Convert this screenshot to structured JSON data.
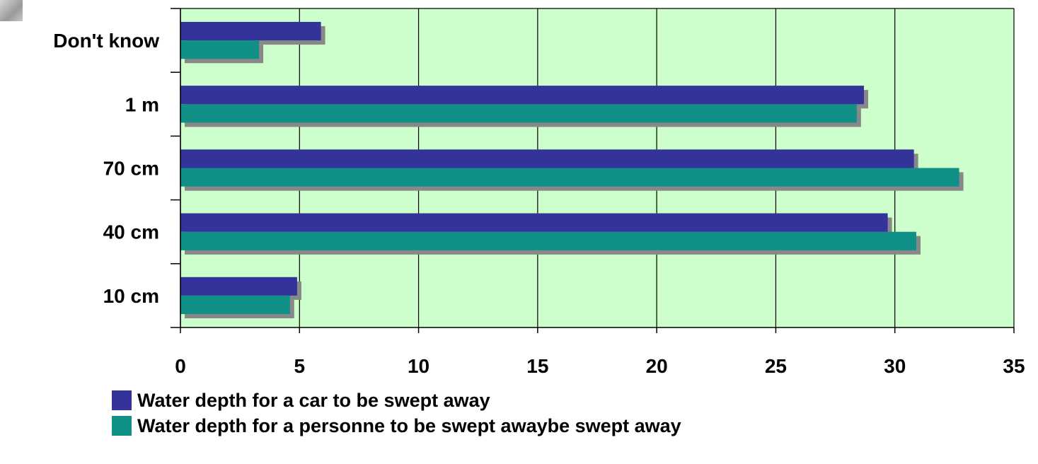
{
  "chart_data": {
    "type": "bar",
    "orientation": "horizontal",
    "categories": [
      "Don't know",
      "1 m",
      "70 cm",
      "40 cm",
      "10 cm"
    ],
    "series": [
      {
        "name": "Water depth for a car to be swept away",
        "color": "#333399",
        "values": [
          5.9,
          28.7,
          30.8,
          29.7,
          4.9
        ]
      },
      {
        "name": "Water depth for a personne to be swept awaybe swept away",
        "color": "#119088",
        "values": [
          3.3,
          28.4,
          32.7,
          30.9,
          4.6
        ]
      }
    ],
    "xlim": [
      0,
      35
    ],
    "xticks": [
      0,
      5,
      10,
      15,
      20,
      25,
      30,
      35
    ],
    "title": "",
    "xlabel": "",
    "ylabel": "",
    "grid": "vertical",
    "plot_background": "#ccffcc",
    "shadow_color": "#888888",
    "legend_position": "bottom-left"
  }
}
